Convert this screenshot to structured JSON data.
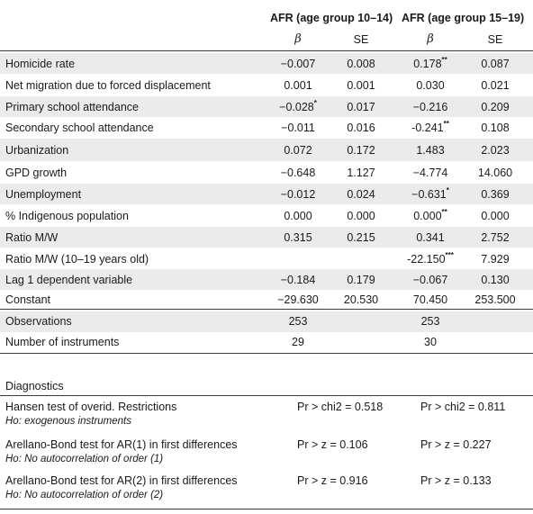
{
  "header": {
    "group1": "AFR (age group 10–14)",
    "group2": "AFR (age group 15–19)",
    "beta": "β",
    "se": "SE"
  },
  "rows": [
    {
      "label": "Homicide rate",
      "b1": "−0.007",
      "s1": "",
      "se1": "0.008",
      "b2": "0.178",
      "s2": "**",
      "se2": "0.087"
    },
    {
      "label": "Net migration due to forced displacement",
      "b1": "0.001",
      "s1": "",
      "se1": "0.001",
      "b2": "0.030",
      "s2": "",
      "se2": "0.021"
    },
    {
      "label": "Primary school attendance",
      "b1": "−0.028",
      "s1": "*",
      "se1": "0.017",
      "b2": "−0.216",
      "s2": "",
      "se2": "0.209"
    },
    {
      "label": "Secondary school attendance",
      "b1": "−0.011",
      "s1": "",
      "se1": "0.016",
      "b2": "-0.241",
      "s2": "**",
      "se2": "0.108"
    },
    {
      "label": "Urbanization",
      "b1": "0.072",
      "s1": "",
      "se1": "0.172",
      "b2": "1.483",
      "s2": "",
      "se2": "2.023"
    },
    {
      "label": "GPD growth",
      "b1": "−0.648",
      "s1": "",
      "se1": "1.127",
      "b2": "−4.774",
      "s2": "",
      "se2": "14.060"
    },
    {
      "label": "Unemployment",
      "b1": "−0.012",
      "s1": "",
      "se1": "0.024",
      "b2": "−0.631",
      "s2": "*",
      "se2": "0.369"
    },
    {
      "label": "% Indigenous population",
      "b1": "0.000",
      "s1": "",
      "se1": "0.000",
      "b2": "0.000",
      "s2": "**",
      "se2": "0.000"
    },
    {
      "label": "Ratio M/W",
      "b1": "0.315",
      "s1": "",
      "se1": "0.215",
      "b2": "0.341",
      "s2": "",
      "se2": "2.752"
    },
    {
      "label": "Ratio M/W (10–19 years old)",
      "b1": "",
      "s1": "",
      "se1": "",
      "b2": "-22.150",
      "s2": "***",
      "se2": "7.929"
    },
    {
      "label": "Lag 1 dependent variable",
      "b1": "−0.184",
      "s1": "",
      "se1": "0.179",
      "b2": "−0.067",
      "s2": "",
      "se2": "0.130"
    },
    {
      "label": "Constant",
      "b1": "−29.630",
      "s1": "",
      "se1": "20.530",
      "b2": "70.450",
      "s2": "",
      "se2": "253.500"
    }
  ],
  "stats": [
    {
      "label": "Observations",
      "v1": "253",
      "v2": "253"
    },
    {
      "label": "Number of instruments",
      "v1": "29",
      "v2": "30"
    }
  ],
  "diagnostics": {
    "title": "Diagnostics",
    "tests": [
      {
        "label": "Hansen test of overid. Restrictions",
        "sub": "Ho: exogenous instruments",
        "v1": "Pr > chi2 =  0.518",
        "v2": "Pr > chi2 =  0.811"
      },
      {
        "label": "Arellano-Bond test for AR(1) in first differences",
        "sub": "Ho: No autocorrelation of order (1)",
        "v1": "Pr > z =  0.106",
        "v2": "Pr > z =  0.227"
      },
      {
        "label": "Arellano-Bond test for AR(2) in first differences",
        "sub": "Ho: No autocorrelation of order (2)",
        "v1": "Pr > z =  0.916",
        "v2": "Pr > z =  0.133"
      }
    ]
  }
}
